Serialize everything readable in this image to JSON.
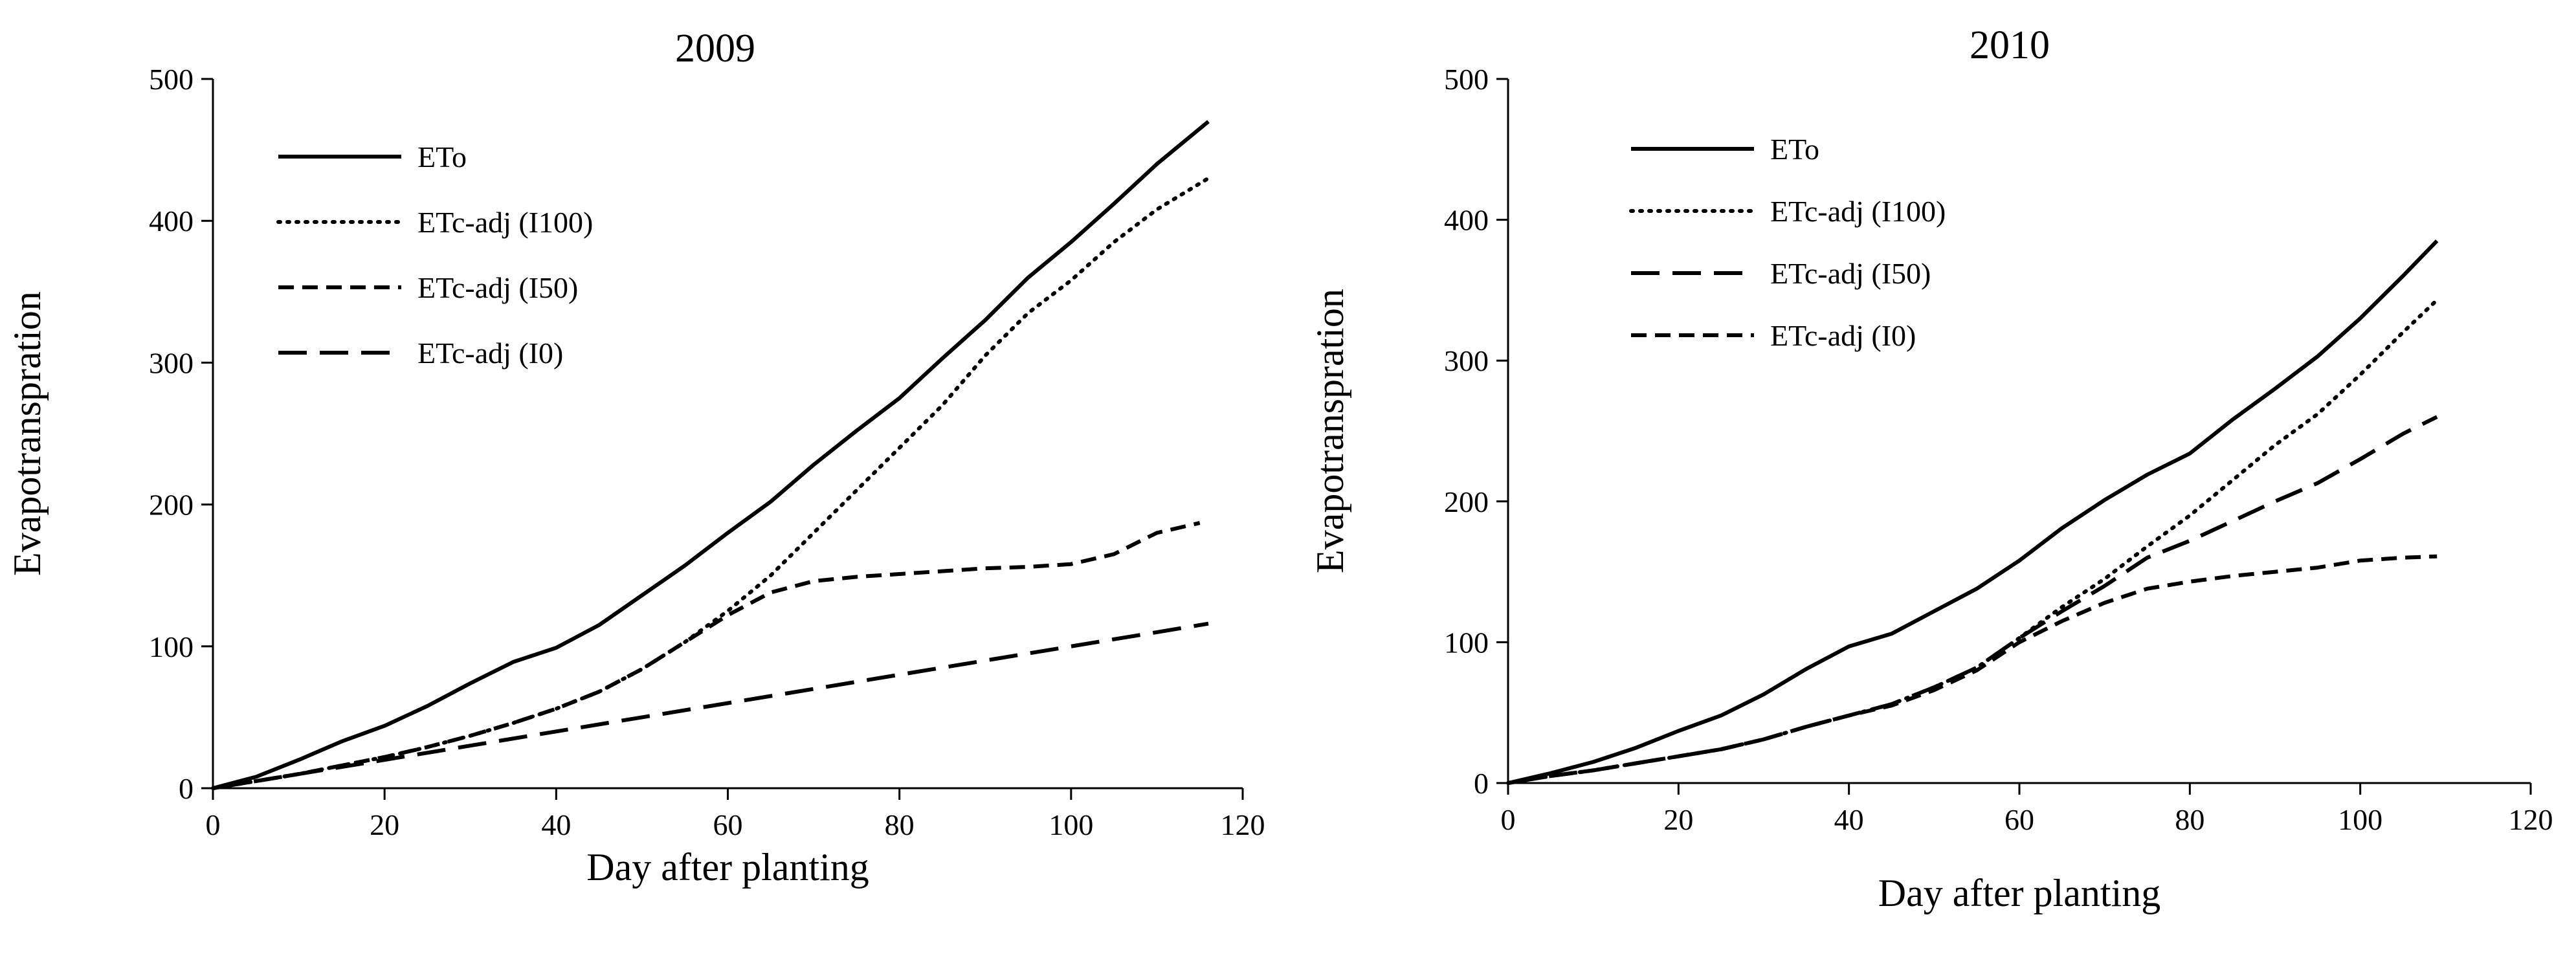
{
  "chart_data": [
    {
      "type": "line",
      "title": "2009",
      "xlabel": "Day after planting",
      "ylabel": "Evapotranspration",
      "xlim": [
        0,
        120
      ],
      "ylim": [
        0,
        500
      ],
      "xticks": [
        "0",
        "20",
        "40",
        "60",
        "80",
        "100",
        "120"
      ],
      "yticks": [
        "0",
        "100",
        "200",
        "300",
        "400",
        "500"
      ],
      "grid": false,
      "legend_position": "top-left",
      "series": [
        {
          "name": "ETo",
          "style": "solid",
          "x": [
            0,
            5,
            10,
            15,
            20,
            25,
            30,
            35,
            40,
            45,
            50,
            55,
            60,
            65,
            70,
            75,
            80,
            85,
            90,
            95,
            100,
            105,
            110,
            116
          ],
          "y": [
            0,
            8,
            20,
            33,
            44,
            58,
            74,
            89,
            99,
            115,
            136,
            157,
            180,
            202,
            228,
            252,
            275,
            303,
            330,
            360,
            385,
            412,
            440,
            470
          ]
        },
        {
          "name": "ETc-adj (I100)",
          "style": "dotted",
          "x": [
            0,
            5,
            10,
            15,
            20,
            25,
            30,
            35,
            40,
            45,
            50,
            55,
            60,
            65,
            70,
            75,
            80,
            85,
            90,
            95,
            100,
            105,
            110,
            116
          ],
          "y": [
            0,
            5,
            10,
            16,
            22,
            29,
            37,
            46,
            56,
            68,
            84,
            103,
            125,
            150,
            180,
            210,
            240,
            270,
            305,
            335,
            358,
            385,
            408,
            430
          ]
        },
        {
          "name": "ETc-adj (I50)",
          "style": "short-dash",
          "x": [
            0,
            5,
            10,
            15,
            20,
            25,
            30,
            35,
            40,
            45,
            50,
            55,
            60,
            65,
            70,
            75,
            80,
            85,
            90,
            95,
            100,
            105,
            110,
            115
          ],
          "y": [
            0,
            5,
            10,
            16,
            22,
            29,
            37,
            46,
            56,
            68,
            84,
            103,
            122,
            138,
            146,
            149,
            151,
            153,
            155,
            156,
            158,
            165,
            180,
            187
          ]
        },
        {
          "name": "ETc-adj (I0)",
          "style": "long-dash",
          "x": [
            0,
            10,
            20,
            30,
            40,
            50,
            60,
            70,
            80,
            90,
            100,
            110,
            116
          ],
          "y": [
            0,
            10,
            20,
            30,
            40,
            50,
            60,
            70,
            80,
            90,
            100,
            110,
            116
          ]
        }
      ]
    },
    {
      "type": "line",
      "title": "2010",
      "xlabel": "Day after planting",
      "ylabel": "Evapotranspration",
      "xlim": [
        0,
        120
      ],
      "ylim": [
        0,
        500
      ],
      "xticks": [
        "0",
        "20",
        "40",
        "60",
        "80",
        "100",
        "120"
      ],
      "yticks": [
        "0",
        "100",
        "200",
        "300",
        "400",
        "500"
      ],
      "grid": false,
      "legend_position": "top-left",
      "series": [
        {
          "name": "ETo",
          "style": "solid",
          "x": [
            0,
            5,
            10,
            15,
            20,
            25,
            30,
            35,
            40,
            45,
            50,
            55,
            60,
            65,
            70,
            75,
            80,
            85,
            90,
            95,
            100,
            105,
            109
          ],
          "y": [
            0,
            7,
            15,
            25,
            37,
            48,
            63,
            81,
            97,
            106,
            122,
            138,
            158,
            181,
            201,
            219,
            234,
            258,
            280,
            303,
            330,
            360,
            385
          ]
        },
        {
          "name": "ETc-adj (I100)",
          "style": "dotted",
          "x": [
            0,
            5,
            10,
            15,
            20,
            25,
            30,
            35,
            40,
            45,
            50,
            55,
            60,
            65,
            70,
            75,
            80,
            85,
            90,
            95,
            100,
            105,
            109
          ],
          "y": [
            0,
            5,
            9,
            14,
            19,
            24,
            31,
            40,
            48,
            56,
            68,
            82,
            103,
            125,
            145,
            168,
            190,
            215,
            240,
            262,
            290,
            320,
            343
          ]
        },
        {
          "name": "ETc-adj (I50)",
          "style": "long-dash",
          "x": [
            0,
            5,
            10,
            15,
            20,
            25,
            30,
            35,
            40,
            45,
            50,
            55,
            60,
            65,
            70,
            75,
            80,
            85,
            90,
            95,
            100,
            105,
            109
          ],
          "y": [
            0,
            5,
            9,
            14,
            19,
            24,
            31,
            40,
            48,
            56,
            68,
            82,
            103,
            122,
            140,
            160,
            172,
            186,
            200,
            213,
            230,
            248,
            260
          ]
        },
        {
          "name": "ETc-adj (I0)",
          "style": "short-dash",
          "x": [
            0,
            5,
            10,
            15,
            20,
            25,
            30,
            35,
            40,
            45,
            50,
            55,
            60,
            65,
            70,
            75,
            80,
            85,
            90,
            95,
            100,
            105,
            109
          ],
          "y": [
            0,
            5,
            9,
            14,
            19,
            24,
            31,
            40,
            48,
            55,
            66,
            80,
            100,
            115,
            128,
            138,
            143,
            147,
            150,
            153,
            158,
            160,
            161
          ]
        }
      ]
    }
  ]
}
